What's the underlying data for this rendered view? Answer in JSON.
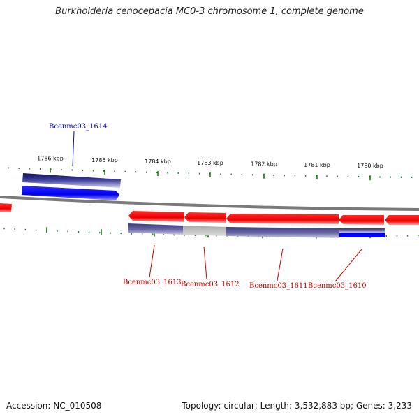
{
  "title": "Burkholderia cenocepacia MC0-3 chromosome 1, complete genome",
  "footer": {
    "accession": "Accession: NC_010508",
    "stats": "Topology: circular; Length: 3,532,883 bp; Genes: 3,233"
  },
  "ruler": {
    "unit": "kbp",
    "major_ticks": [
      1786,
      1785,
      1784,
      1783,
      1782,
      1781,
      1780
    ],
    "tick_color": "#1a7a1a"
  },
  "colors": {
    "backbone": "#7a7a7a",
    "forward_gene": "#ff0000",
    "reverse_gene": "#0000ff",
    "label_forward": "#cc0000",
    "label_reverse": "#0000cc",
    "track_dark": "#2a2a80",
    "track_light": "#bbbbbb"
  },
  "genes": [
    {
      "id": "Bcenmc03_1614",
      "strand": "reverse",
      "label_color": "#0000cc"
    },
    {
      "id": "Bcenmc03_1613",
      "strand": "forward",
      "label_color": "#cc0000"
    },
    {
      "id": "Bcenmc03_1612",
      "strand": "forward",
      "label_color": "#cc0000"
    },
    {
      "id": "Bcenmc03_1611",
      "strand": "forward",
      "label_color": "#cc0000"
    },
    {
      "id": "Bcenmc03_1610",
      "strand": "forward",
      "label_color": "#cc0000"
    }
  ]
}
